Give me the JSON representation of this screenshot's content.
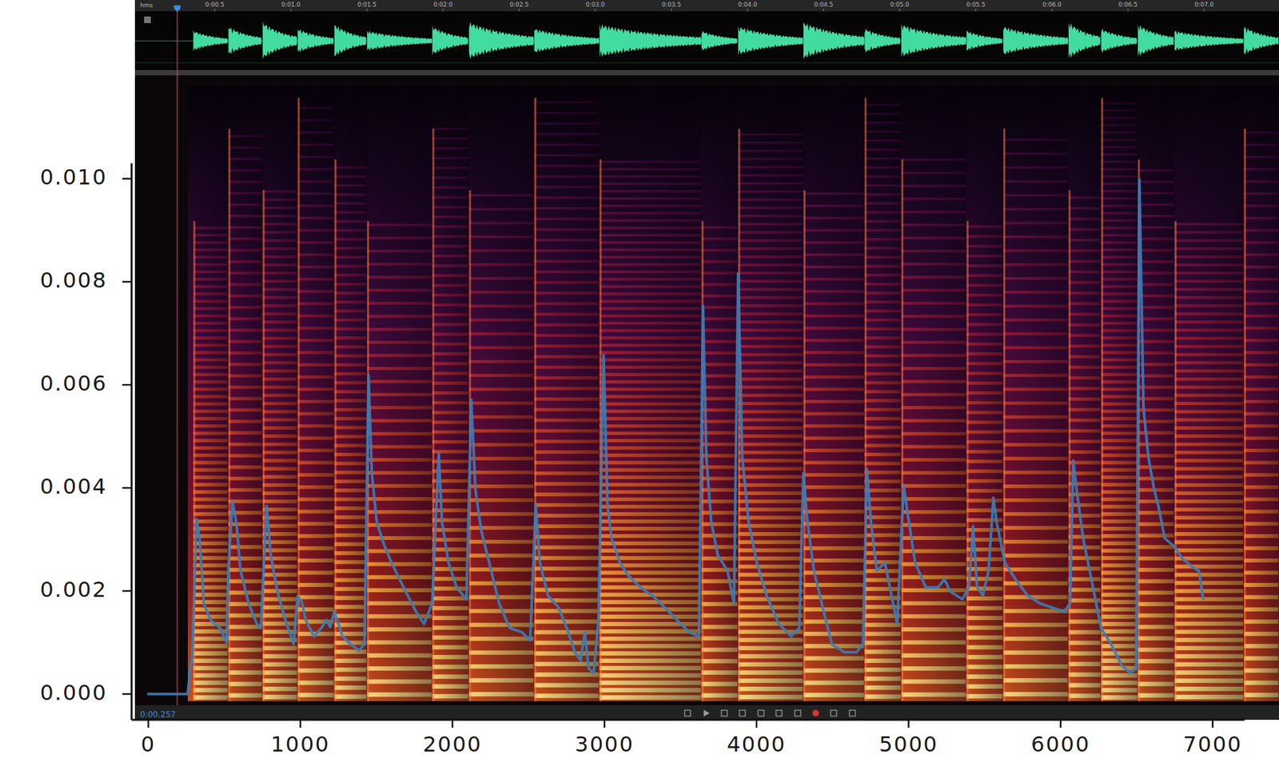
{
  "chart_data": {
    "type": "line",
    "x": [
      0,
      258,
      290,
      317,
      338,
      365,
      408,
      472,
      515,
      526,
      553,
      580,
      606,
      660,
      714,
      740,
      778,
      805,
      848,
      901,
      955,
      982,
      1008,
      1035,
      1089,
      1143,
      1170,
      1196,
      1223,
      1277,
      1330,
      1384,
      1422,
      1448,
      1470,
      1502,
      1545,
      1599,
      1679,
      1760,
      1813,
      1867,
      1910,
      1931,
      1974,
      2028,
      2092,
      2124,
      2151,
      2189,
      2242,
      2307,
      2377,
      2457,
      2511,
      2548,
      2575,
      2629,
      2698,
      2752,
      2806,
      2843,
      2870,
      2897,
      2929,
      2960,
      2994,
      3020,
      3047,
      3101,
      3154,
      3235,
      3315,
      3396,
      3476,
      3557,
      3621,
      3648,
      3670,
      3702,
      3745,
      3809,
      3852,
      3879,
      3906,
      3948,
      4002,
      4067,
      4147,
      4227,
      4281,
      4308,
      4335,
      4378,
      4442,
      4496,
      4576,
      4657,
      4700,
      4726,
      4753,
      4791,
      4844,
      4898,
      4925,
      4968,
      4994,
      5043,
      5113,
      5193,
      5236,
      5274,
      5354,
      5397,
      5424,
      5451,
      5488,
      5526,
      5558,
      5579,
      5633,
      5702,
      5783,
      5863,
      5944,
      6024,
      6062,
      6083,
      6105,
      6148,
      6202,
      6266,
      6331,
      6400,
      6454,
      6497,
      6518,
      6545,
      6577,
      6615,
      6642,
      6685,
      6749,
      6803,
      6867,
      6910,
      6937
    ],
    "values": [
      0,
      0,
      0.0008,
      0.0034,
      0.003,
      0.00176,
      0.00144,
      0.00128,
      0.001,
      0.0024,
      0.00373,
      0.0033,
      0.0024,
      0.00176,
      0.00136,
      0.00128,
      0.00365,
      0.0027,
      0.002,
      0.00144,
      0.00097,
      0.0019,
      0.0018,
      0.00144,
      0.00112,
      0.0013,
      0.00144,
      0.0013,
      0.0016,
      0.00112,
      0.00097,
      0.00084,
      0.00097,
      0.00619,
      0.00429,
      0.00334,
      0.00294,
      0.00255,
      0.00207,
      0.0016,
      0.00136,
      0.00176,
      0.00468,
      0.00334,
      0.00255,
      0.00207,
      0.00184,
      0.00571,
      0.00397,
      0.00318,
      0.00255,
      0.00176,
      0.00128,
      0.0012,
      0.00104,
      0.00369,
      0.00255,
      0.00191,
      0.00168,
      0.00128,
      0.00081,
      0.00065,
      0.0012,
      0.00049,
      0.00041,
      0.0014,
      0.00658,
      0.00366,
      0.00302,
      0.00255,
      0.00231,
      0.00207,
      0.00191,
      0.00168,
      0.00144,
      0.0012,
      0.00112,
      0.00753,
      0.0046,
      0.00334,
      0.0027,
      0.00239,
      0.00176,
      0.00816,
      0.0046,
      0.00334,
      0.00255,
      0.00191,
      0.00136,
      0.00112,
      0.00128,
      0.00429,
      0.00334,
      0.00239,
      0.0016,
      0.00097,
      0.00081,
      0.00081,
      0.00097,
      0.00437,
      0.00334,
      0.00239,
      0.00255,
      0.00176,
      0.00136,
      0.00405,
      0.0035,
      0.00255,
      0.00207,
      0.00207,
      0.00223,
      0.00199,
      0.00184,
      0.00207,
      0.00326,
      0.00207,
      0.00191,
      0.00239,
      0.00381,
      0.00334,
      0.00255,
      0.00223,
      0.00191,
      0.00176,
      0.00168,
      0.0016,
      0.00176,
      0.00453,
      0.00397,
      0.00302,
      0.00223,
      0.00128,
      0.00097,
      0.00057,
      0.00041,
      0.00049,
      0.00998,
      0.00555,
      0.0046,
      0.00397,
      0.00366,
      0.00302,
      0.00286,
      0.00262,
      0.00247,
      0.00239,
      0.00184
    ],
    "color": "#3a7db8",
    "xlim": [
      -110,
      7210
    ],
    "ylim": [
      -0.0005,
      0.0103
    ],
    "xticks": [
      0,
      1000,
      2000,
      3000,
      4000,
      5000,
      6000,
      7000
    ],
    "yticks": [
      {
        "value": 0,
        "label": "0.000"
      },
      {
        "value": 0.002,
        "label": "0.002"
      },
      {
        "value": 0.004,
        "label": "0.004"
      },
      {
        "value": 0.006,
        "label": "0.006"
      },
      {
        "value": 0.008,
        "label": "0.008"
      },
      {
        "value": 0.01,
        "label": "0.010"
      }
    ],
    "grid": false
  },
  "screenshot": {
    "ruler_unit": "hms",
    "ruler_labels": [
      "0:00.5",
      "0:01.0",
      "0:01.5",
      "0:02.0",
      "0:02.5",
      "0:03.0",
      "0:03.5",
      "0:04.0",
      "0:04.5",
      "0:05.0",
      "0:05.5",
      "0:06.0",
      "0:06.5",
      "0:07.0"
    ],
    "time": "0:00.257"
  }
}
